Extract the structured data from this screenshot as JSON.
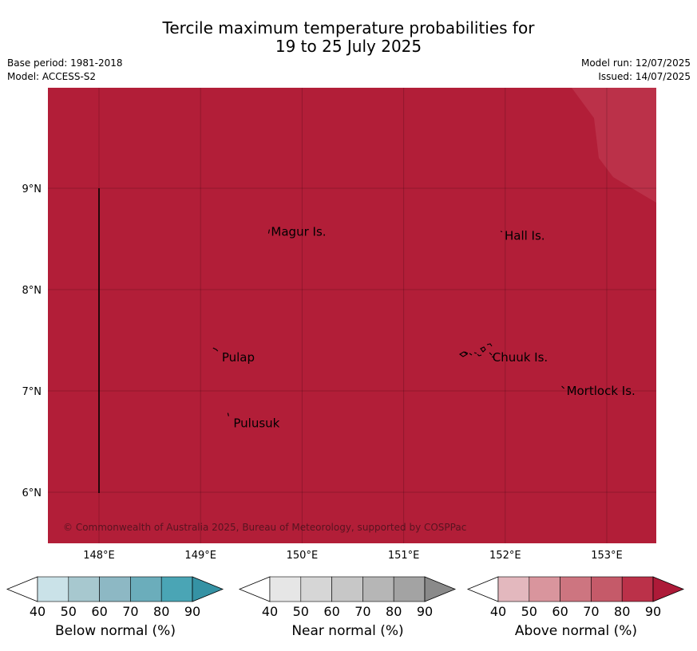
{
  "title": {
    "line1": "Tercile maximum temperature probabilities for",
    "line2": "19 to 25 July 2025"
  },
  "meta": {
    "base_period": "Base period: 1981-2018",
    "model": "Model: ACCESS-S2",
    "model_run": "Model run: 12/07/2025",
    "issued": "Issued: 14/07/2025"
  },
  "map": {
    "background_color": "#b21e38",
    "lighter_region_color": "#bb3149",
    "lon_ticks": [
      "148°E",
      "149°E",
      "150°E",
      "151°E",
      "152°E",
      "153°E"
    ],
    "lat_ticks": [
      "9°N",
      "8°N",
      "7°N",
      "6°N"
    ],
    "places": [
      {
        "name": "Magur Is.",
        "lon": 149.67,
        "lat": 8.57
      },
      {
        "name": "Hall Is.",
        "lon": 151.97,
        "lat": 8.53
      },
      {
        "name": "Pulap",
        "lon": 149.17,
        "lat": 7.33
      },
      {
        "name": "Chuuk Is.",
        "lon": 151.85,
        "lat": 7.33
      },
      {
        "name": "Mortlock Is.",
        "lon": 152.58,
        "lat": 7.0
      },
      {
        "name": "Pulusuk",
        "lon": 149.3,
        "lat": 6.68
      }
    ],
    "copyright": "© Commonwealth of Australia 2025, Bureau of Meteorology, supported by COSPPac"
  },
  "colorbars": [
    {
      "label": "Below normal (%)",
      "ticks": [
        "40",
        "50",
        "60",
        "70",
        "80",
        "90"
      ],
      "colors": [
        "#ffffff",
        "#cae2e8",
        "#a7c8cf",
        "#8db8c4",
        "#6badbb",
        "#4aa5b5",
        "#3592a4"
      ]
    },
    {
      "label": "Near normal (%)",
      "ticks": [
        "40",
        "50",
        "60",
        "70",
        "80",
        "90"
      ],
      "colors": [
        "#ffffff",
        "#e6e6e6",
        "#d6d6d6",
        "#c7c7c7",
        "#b6b6b6",
        "#a3a3a3",
        "#8a8a8a"
      ]
    },
    {
      "label": "Above normal (%)",
      "ticks": [
        "40",
        "50",
        "60",
        "70",
        "80",
        "90"
      ],
      "colors": [
        "#ffffff",
        "#e3b8be",
        "#d9959d",
        "#cd7580",
        "#c55a69",
        "#bb3149",
        "#ad1a38"
      ]
    }
  ]
}
